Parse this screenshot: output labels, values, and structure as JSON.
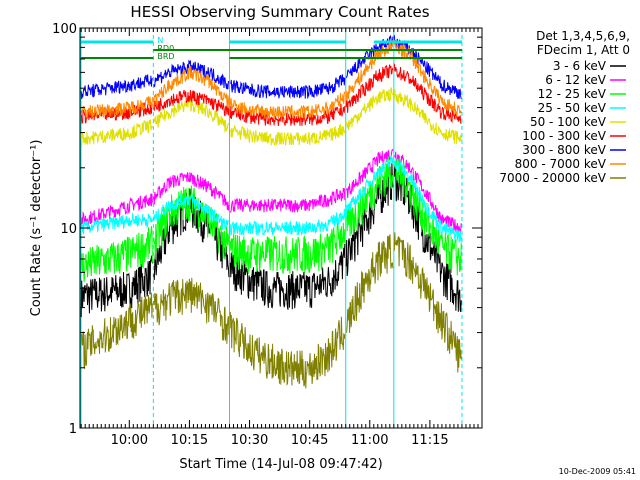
{
  "chart_data": {
    "type": "line",
    "title": "HESSI Observing Summary Count Rates",
    "xlabel": "Start Time (14-Jul-08 09:47:42)",
    "ylabel": "Count Rate (s⁻¹ detector⁻¹)",
    "y_scale": "log",
    "ylim": [
      1,
      100
    ],
    "xlim": [
      "09:47:42",
      "11:28:00"
    ],
    "x_ticks": [
      "10:00",
      "10:15",
      "10:30",
      "10:45",
      "11:00",
      "11:15"
    ],
    "y_ticks": [
      "1",
      "10",
      "100"
    ],
    "legend": {
      "placement": "right",
      "header": [
        "Det 1,3,4,5,6,9,",
        "FDecim 1, Att 0"
      ]
    },
    "flags": [
      {
        "label": "N",
        "color": "#00e5e5"
      },
      {
        "label": "RD0",
        "color": "#008800"
      },
      {
        "label": "BRD",
        "color": "#008800"
      }
    ],
    "vertical_markers": [
      "10:06",
      "10:25",
      "10:54",
      "11:06",
      "11:23"
    ],
    "night_markers_dashed": [
      "10:06",
      "11:23"
    ],
    "series": [
      {
        "name": "3 - 6 keV",
        "color": "#000000",
        "x": [
          "09:48",
          "09:55",
          "10:00",
          "10:06",
          "10:10",
          "10:15",
          "10:20",
          "10:25",
          "10:30",
          "10:35",
          "10:40",
          "10:45",
          "10:50",
          "10:54",
          "10:58",
          "11:02",
          "11:06",
          "11:10",
          "11:14",
          "11:18",
          "11:23"
        ],
        "y": [
          4.6,
          4.8,
          5.0,
          6.0,
          10,
          13,
          10,
          6.5,
          5.5,
          5.0,
          5.0,
          5.0,
          5.5,
          7.0,
          10,
          14,
          18,
          14,
          9,
          6,
          4.5
        ]
      },
      {
        "name": "6 - 12 keV",
        "color": "#ff00ff",
        "x": [
          "09:48",
          "09:55",
          "10:00",
          "10:06",
          "10:10",
          "10:15",
          "10:20",
          "10:25",
          "10:30",
          "10:35",
          "10:40",
          "10:45",
          "10:50",
          "10:54",
          "10:58",
          "11:02",
          "11:06",
          "11:10",
          "11:14",
          "11:18",
          "11:23"
        ],
        "y": [
          11,
          12,
          13,
          14,
          17,
          18,
          16,
          13,
          13,
          13,
          13,
          13,
          14,
          15,
          18,
          22,
          24,
          20,
          15,
          11,
          10
        ]
      },
      {
        "name": "12 - 25 keV",
        "color": "#00ff00",
        "x": [
          "09:48",
          "09:55",
          "10:00",
          "10:06",
          "10:10",
          "10:15",
          "10:20",
          "10:25",
          "10:30",
          "10:35",
          "10:40",
          "10:45",
          "10:50",
          "10:54",
          "10:58",
          "11:02",
          "11:06",
          "11:10",
          "11:14",
          "11:18",
          "11:23"
        ],
        "y": [
          6.5,
          7,
          7.5,
          8.5,
          12,
          14,
          11,
          8,
          7.5,
          7.5,
          7.5,
          7.5,
          8,
          10,
          13,
          17,
          20,
          16,
          11,
          8,
          7
        ]
      },
      {
        "name": "25 - 50 keV",
        "color": "#00ffff",
        "x": [
          "09:48",
          "09:55",
          "10:00",
          "10:06",
          "10:10",
          "10:15",
          "10:20",
          "10:25",
          "10:30",
          "10:35",
          "10:40",
          "10:45",
          "10:50",
          "10:54",
          "10:58",
          "11:02",
          "11:06",
          "11:10",
          "11:14",
          "11:18",
          "11:23"
        ],
        "y": [
          10,
          10.5,
          11,
          11,
          13,
          14,
          12,
          10,
          10,
          10,
          10,
          10,
          10.5,
          12,
          15,
          19,
          22,
          18,
          13,
          10,
          9
        ]
      },
      {
        "name": "50 - 100 keV",
        "color": "#e0e000",
        "x": [
          "09:48",
          "09:55",
          "10:00",
          "10:06",
          "10:10",
          "10:15",
          "10:20",
          "10:25",
          "10:30",
          "10:35",
          "10:40",
          "10:45",
          "10:50",
          "10:54",
          "10:58",
          "11:02",
          "11:06",
          "11:10",
          "11:14",
          "11:18",
          "11:23"
        ],
        "y": [
          28,
          29,
          30,
          33,
          38,
          42,
          38,
          31,
          29,
          28,
          28,
          28,
          29,
          32,
          38,
          45,
          47,
          42,
          35,
          30,
          28
        ]
      },
      {
        "name": "100 - 300 keV",
        "color": "#ff0000",
        "x": [
          "09:48",
          "09:55",
          "10:00",
          "10:06",
          "10:10",
          "10:15",
          "10:20",
          "10:25",
          "10:30",
          "10:35",
          "10:40",
          "10:45",
          "10:50",
          "10:54",
          "10:58",
          "11:02",
          "11:06",
          "11:10",
          "11:14",
          "11:18",
          "11:23"
        ],
        "y": [
          36,
          37,
          38,
          40,
          44,
          46,
          43,
          38,
          36,
          35,
          35,
          35,
          36,
          40,
          48,
          58,
          62,
          56,
          46,
          38,
          35
        ]
      },
      {
        "name": "300 - 800 keV",
        "color": "#0000ff",
        "x": [
          "09:48",
          "09:55",
          "10:00",
          "10:06",
          "10:10",
          "10:15",
          "10:20",
          "10:25",
          "10:30",
          "10:35",
          "10:40",
          "10:45",
          "10:50",
          "10:54",
          "10:58",
          "11:02",
          "11:06",
          "11:10",
          "11:14",
          "11:18",
          "11:23"
        ],
        "y": [
          48,
          50,
          52,
          55,
          60,
          64,
          60,
          52,
          49,
          48,
          48,
          48,
          50,
          56,
          68,
          80,
          86,
          78,
          64,
          52,
          47
        ]
      },
      {
        "name": "800 - 7000 keV",
        "color": "#ff8800",
        "x": [
          "09:48",
          "09:55",
          "10:00",
          "10:06",
          "10:10",
          "10:15",
          "10:20",
          "10:25",
          "10:30",
          "10:35",
          "10:40",
          "10:45",
          "10:50",
          "10:54",
          "10:58",
          "11:02",
          "11:06",
          "11:10",
          "11:14",
          "11:18",
          "11:23"
        ],
        "y": [
          38,
          39,
          40,
          43,
          52,
          60,
          54,
          42,
          39,
          38,
          38,
          38,
          40,
          46,
          58,
          74,
          82,
          74,
          56,
          43,
          38
        ]
      },
      {
        "name": "7000 - 20000 keV",
        "color": "#808000",
        "x": [
          "09:48",
          "09:55",
          "10:00",
          "10:06",
          "10:10",
          "10:15",
          "10:20",
          "10:25",
          "10:30",
          "10:35",
          "10:40",
          "10:45",
          "10:50",
          "10:54",
          "10:58",
          "11:02",
          "11:06",
          "11:10",
          "11:14",
          "11:18",
          "11:23"
        ],
        "y": [
          2.5,
          3.0,
          3.5,
          4.0,
          4.5,
          4.8,
          4.2,
          3.2,
          2.5,
          2.2,
          2.0,
          2.0,
          2.4,
          3.2,
          5.0,
          7.0,
          8.0,
          7.0,
          5.0,
          3.5,
          2.2
        ]
      }
    ],
    "timestamp": "10-Dec-2009 05:41"
  }
}
